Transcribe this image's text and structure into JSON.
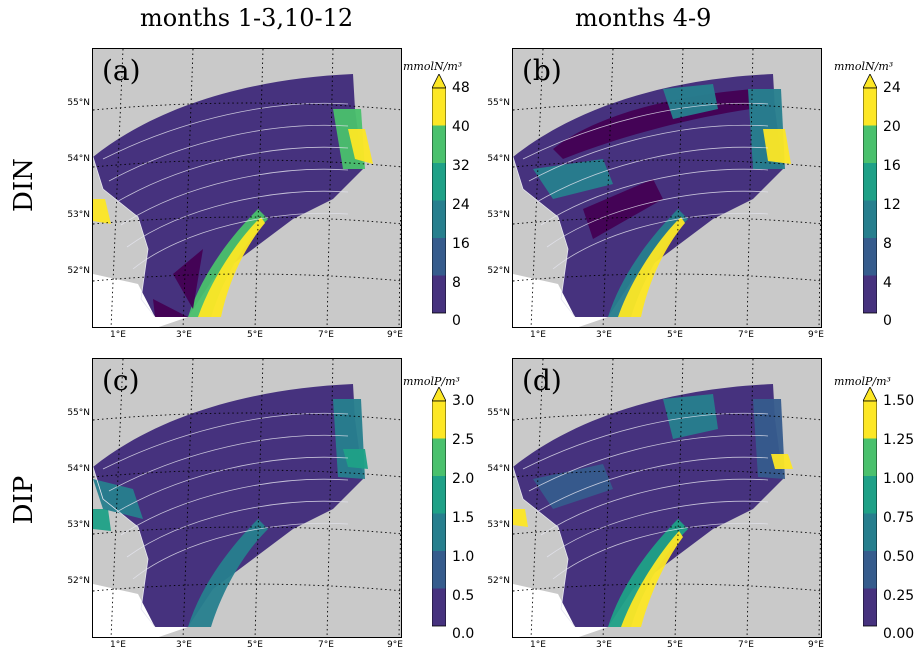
{
  "columns": [
    "months 1-3,10-12",
    "months 4-9"
  ],
  "rows": [
    "DIN",
    "DIP"
  ],
  "panels": [
    {
      "label": "(a)",
      "unit": "mmolN/m³",
      "ticks": [
        "48",
        "40",
        "32",
        "24",
        "16",
        "8",
        "0"
      ],
      "extend_max": true
    },
    {
      "label": "(b)",
      "unit": "mmolN/m³",
      "ticks": [
        "24",
        "20",
        "16",
        "12",
        "8",
        "4",
        "0"
      ],
      "extend_max": true
    },
    {
      "label": "(c)",
      "unit": "mmolP/m³",
      "ticks": [
        "3.0",
        "2.5",
        "2.0",
        "1.5",
        "1.0",
        "0.5",
        "0.0"
      ],
      "extend_max": true
    },
    {
      "label": "(d)",
      "unit": "mmolP/m³",
      "ticks": [
        "1.50",
        "1.25",
        "1.00",
        "0.75",
        "0.50",
        "0.25",
        "0.00"
      ],
      "extend_max": true
    }
  ],
  "lat_labels": [
    "55°N",
    "54°N",
    "53°N",
    "52°N"
  ],
  "lon_labels": [
    "1°E",
    "3°E",
    "5°E",
    "7°E",
    "9°E"
  ],
  "colors": {
    "land": "#c9c9c9",
    "bins": [
      "#440154",
      "#46327e",
      "#365c8d",
      "#277f8e",
      "#1fa187",
      "#4ac16d",
      "#fde725"
    ]
  }
}
